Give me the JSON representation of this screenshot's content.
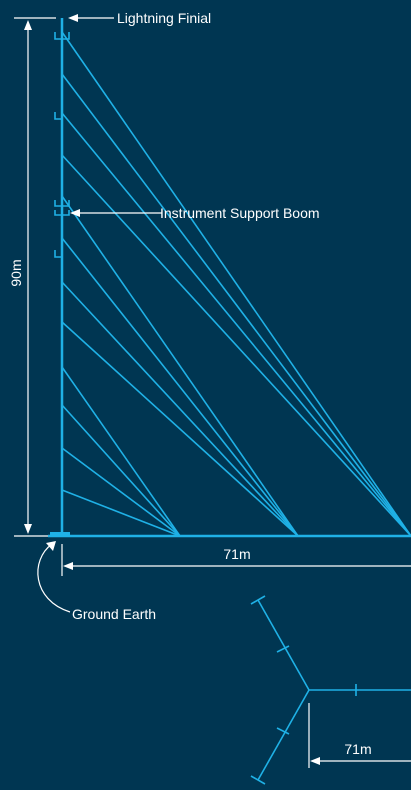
{
  "labels": {
    "finial": "Lightning Finial",
    "boom": "Instrument Support Boom",
    "earth": "Ground Earth"
  },
  "dimensions": {
    "height": "90m",
    "guy_radius": "71m",
    "plan_radius": "71m"
  },
  "colors": {
    "background": "#003652",
    "structure": "#1fb1e6",
    "annotation": "#ffffff"
  }
}
